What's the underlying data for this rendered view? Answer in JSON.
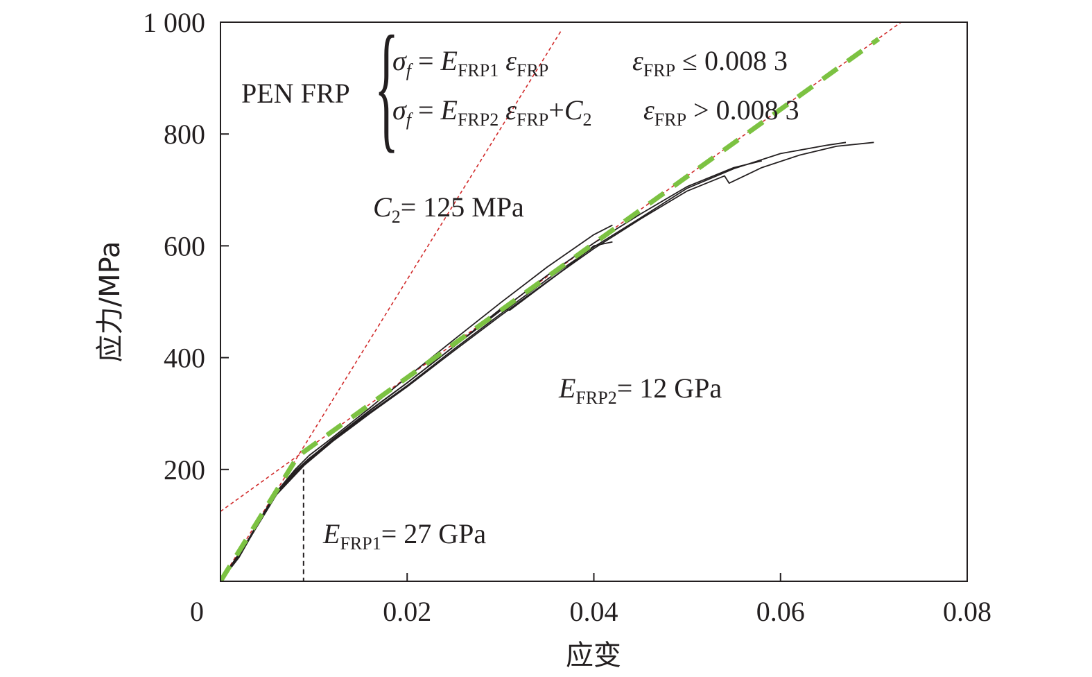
{
  "chart_data": {
    "type": "line",
    "xlabel": "应变",
    "ylabel": "应力/MPa",
    "xlim": [
      0,
      0.08
    ],
    "ylim": [
      0,
      1000
    ],
    "x_ticks": [
      0,
      0.02,
      0.04,
      0.06,
      0.08
    ],
    "x_tick_labels": [
      "0",
      "0.02",
      "0.04",
      "0.06",
      "0.08"
    ],
    "y_ticks": [
      200,
      400,
      600,
      800,
      1000
    ],
    "y_tick_labels": [
      "200",
      "400",
      "600",
      "800",
      "1 000"
    ],
    "grid": false,
    "series": [
      {
        "style": "test",
        "x": [
          0,
          0.002,
          0.004,
          0.006,
          0.008,
          0.0095,
          0.012,
          0.016,
          0.02,
          0.025,
          0.03,
          0.035,
          0.04,
          0.042
        ],
        "y": [
          0,
          45,
          105,
          160,
          200,
          225,
          257,
          310,
          365,
          432,
          498,
          562,
          620,
          637
        ]
      },
      {
        "style": "test",
        "x": [
          0,
          0.002,
          0.004,
          0.006,
          0.008,
          0.0095,
          0.012,
          0.016,
          0.02,
          0.025,
          0.03,
          0.031,
          0.033,
          0.037,
          0.04,
          0.042
        ],
        "y": [
          0,
          43,
          102,
          157,
          197,
          220,
          252,
          305,
          355,
          420,
          487,
          485,
          510,
          560,
          600,
          607
        ]
      },
      {
        "style": "test",
        "x": [
          0,
          0.003,
          0.006,
          0.009,
          0.012,
          0.016,
          0.02,
          0.025,
          0.03,
          0.035,
          0.04,
          0.045,
          0.05,
          0.055,
          0.058
        ],
        "y": [
          0,
          75,
          158,
          212,
          254,
          306,
          355,
          420,
          484,
          547,
          605,
          657,
          706,
          740,
          752
        ]
      },
      {
        "style": "test",
        "x": [
          0,
          0.003,
          0.006,
          0.009,
          0.012,
          0.016,
          0.02,
          0.025,
          0.03,
          0.035,
          0.04,
          0.045,
          0.05,
          0.055,
          0.06,
          0.065,
          0.067
        ],
        "y": [
          0,
          74,
          156,
          210,
          252,
          302,
          350,
          415,
          478,
          540,
          598,
          650,
          703,
          738,
          765,
          780,
          785
        ]
      },
      {
        "style": "test",
        "x": [
          0,
          0.003,
          0.006,
          0.009,
          0.012,
          0.016,
          0.02,
          0.025,
          0.03,
          0.035,
          0.04,
          0.045,
          0.05,
          0.054,
          0.0545,
          0.058,
          0.062,
          0.066,
          0.07
        ],
        "y": [
          0,
          73,
          155,
          208,
          250,
          300,
          348,
          412,
          475,
          536,
          595,
          648,
          698,
          725,
          712,
          740,
          762,
          778,
          785
        ]
      },
      {
        "style": "fit-initial",
        "x": [
          0,
          0.0365
        ],
        "y": [
          0,
          985
        ]
      },
      {
        "style": "fit-secondary",
        "x": [
          0,
          0.073
        ],
        "y": [
          125,
          1001
        ]
      },
      {
        "style": "bilinear-fit",
        "x": [
          0,
          0.0083,
          0.0705
        ],
        "y": [
          0,
          224,
          970
        ]
      }
    ],
    "vline_x": 0.0089,
    "annotations": {
      "pen_frp": "PEN FRP",
      "eq1": {
        "sigma": "σ",
        "f": "f",
        "eq": " = ",
        "E": "E",
        "E_sub": "FRP1",
        "eps": " ε",
        "eps_sub": "FRP"
      },
      "eq1_cond": {
        "eps": "ε",
        "eps_sub": "FRP",
        "rel": " ≤ 0.008 3"
      },
      "eq2": {
        "sigma": "σ",
        "f": "f",
        "eq": " = ",
        "E": "E",
        "E_sub": "FRP2",
        "eps": " ε",
        "eps_sub": "FRP",
        "plus": "+",
        "C": "C",
        "C_sub": "2"
      },
      "eq2_cond": {
        "eps": "ε",
        "eps_sub": "FRP",
        "rel": " > 0.008 3"
      },
      "c2": {
        "C": "C",
        "C_sub": "2",
        "rest": "= 125 MPa"
      },
      "efrp2": {
        "E": "E",
        "E_sub": "FRP2",
        "rest": "= 12 GPa"
      },
      "efrp1": {
        "E": "E",
        "E_sub": "FRP1",
        "rest": "= 27 GPa"
      }
    },
    "colors": {
      "test": "#231f20",
      "fit_lines": "#d12a2a",
      "bilinear": "#7cc242",
      "vline": "#231f20"
    }
  }
}
